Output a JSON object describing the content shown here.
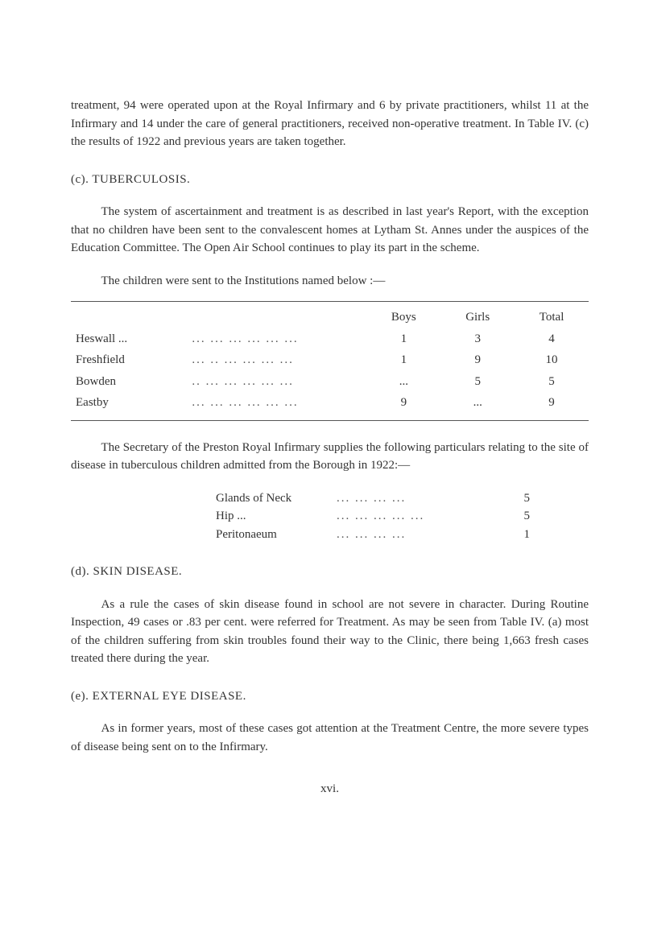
{
  "page": {
    "text_color": "#333333",
    "background_color": "#ffffff",
    "font_family": "Times New Roman",
    "body_fontsize_pt": 11
  },
  "para1": "treatment, 94 were operated upon at the Royal Infirmary and 6 by private practitioners, whilst 11 at the Infirmary and 14 under the care of general practitioners, received non-operative treatment. In Table IV. (c) the results of 1922 and previous years are taken together.",
  "sec_c": {
    "heading": "(c). TUBERCULOSIS.",
    "para": "The system of ascertainment and treatment is as described in last year's Report, with the exception that no children have been sent to the convalescent homes at Lytham St. Annes under the auspices of the Education Committee. The Open Air School continues to play its part in the scheme.",
    "table_caption": "The children were sent to the Institutions named below :—",
    "table": {
      "type": "table",
      "rule_color": "#555555",
      "columns": [
        "",
        "",
        "Boys",
        "Girls",
        "Total"
      ],
      "col_align": [
        "left",
        "left",
        "center",
        "center",
        "center"
      ],
      "rows": [
        {
          "name": "Heswall ...",
          "dots": "...   ...   ...   ...   ...   ...",
          "boys": "1",
          "girls": "3",
          "total": "4"
        },
        {
          "name": "Freshfield",
          "dots": "...   ..   ...   ...   ...   ...",
          "boys": "1",
          "girls": "9",
          "total": "10"
        },
        {
          "name": "Bowden",
          "dots": "..   ...   ...   ...   ...   ...",
          "boys": "...",
          "girls": "5",
          "total": "5"
        },
        {
          "name": "Eastby",
          "dots": "...   ...   ...   ...   ...   ...",
          "boys": "9",
          "girls": "...",
          "total": "9"
        }
      ]
    },
    "supplies_para": "The Secretary of the Preston Royal Infirmary supplies the following particulars relating to the site of disease in tuberculous children admitted from the Borough in 1922:—",
    "supplies": {
      "type": "list",
      "rows": [
        {
          "label": "Glands of Neck",
          "dots": "...   ...   ...   ...",
          "value": "5"
        },
        {
          "label": "Hip ...",
          "dots": "...   ...   ...   ...   ...",
          "value": "5"
        },
        {
          "label": "Peritonaeum",
          "dots": "...   ...   ...   ...",
          "value": "1"
        }
      ]
    }
  },
  "sec_d": {
    "heading": "(d). SKIN DISEASE.",
    "para": "As a rule the cases of skin disease found in school are not severe in character. During Routine Inspection, 49 cases or .83 per cent. were referred for Treatment. As may be seen from Table IV. (a) most of the children suffering from skin troubles found their way to the Clinic, there being 1,663 fresh cases treated there during the year."
  },
  "sec_e": {
    "heading": "(e). EXTERNAL EYE DISEASE.",
    "para": "As in former years, most of these cases got attention at the Treatment Centre, the more severe types of disease being sent on to the Infirmary."
  },
  "page_number": "xvi."
}
